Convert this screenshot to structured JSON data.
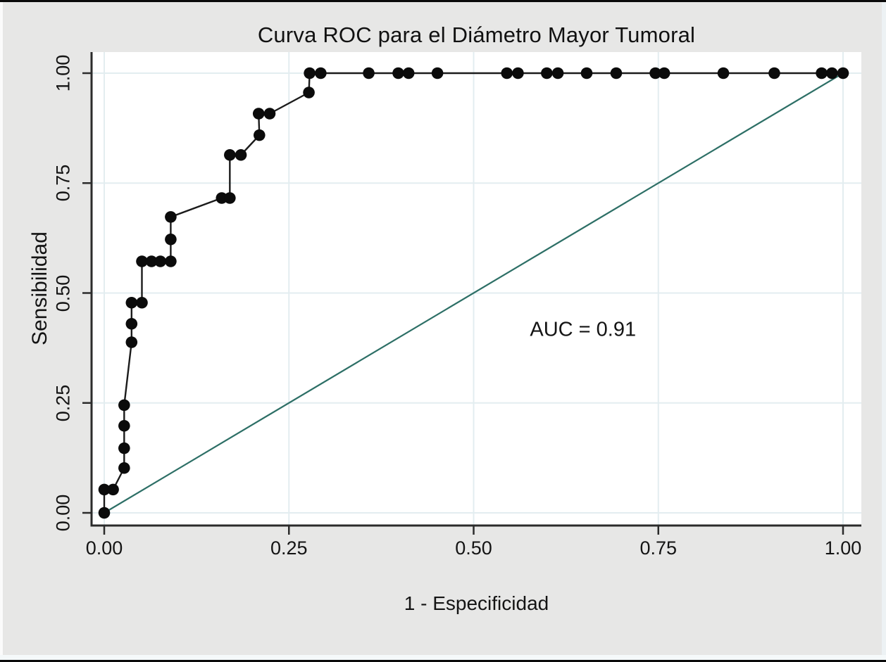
{
  "chart_data": {
    "type": "line",
    "title": "Curva ROC para el Diámetro Mayor Tumoral",
    "xlabel": "1 - Especificidad",
    "ylabel": "Sensibilidad",
    "xlim": [
      0,
      1
    ],
    "ylim": [
      0,
      1
    ],
    "grid": true,
    "legend": "none",
    "x_ticks": {
      "values": [
        0,
        0.25,
        0.5,
        0.75,
        1
      ],
      "labels": [
        "0.00",
        "0.25",
        "0.50",
        "0.75",
        "1.00"
      ]
    },
    "y_ticks": {
      "values": [
        0,
        0.25,
        0.5,
        0.75,
        1
      ],
      "labels": [
        "0.00",
        "0.25",
        "0.50",
        "0.75",
        "1.00"
      ]
    },
    "annotation": {
      "text": "AUC = 0.91",
      "x": 0.648,
      "y": 0.416
    },
    "series": [
      {
        "name": "roc-curve",
        "style": "line-with-markers",
        "color": "#1b1b1b",
        "marker_color": "#0b0b0b",
        "points": [
          [
            0.0,
            0.0
          ],
          [
            0.0,
            0.053
          ],
          [
            0.012,
            0.053
          ],
          [
            0.027,
            0.102
          ],
          [
            0.027,
            0.147
          ],
          [
            0.027,
            0.198
          ],
          [
            0.027,
            0.245
          ],
          [
            0.037,
            0.388
          ],
          [
            0.037,
            0.43
          ],
          [
            0.037,
            0.478
          ],
          [
            0.051,
            0.478
          ],
          [
            0.051,
            0.572
          ],
          [
            0.064,
            0.572
          ],
          [
            0.076,
            0.572
          ],
          [
            0.09,
            0.572
          ],
          [
            0.09,
            0.622
          ],
          [
            0.09,
            0.673
          ],
          [
            0.159,
            0.716
          ],
          [
            0.17,
            0.716
          ],
          [
            0.17,
            0.814
          ],
          [
            0.185,
            0.814
          ],
          [
            0.21,
            0.859
          ],
          [
            0.209,
            0.908
          ],
          [
            0.224,
            0.908
          ],
          [
            0.277,
            0.956
          ],
          [
            0.278,
            1.0
          ],
          [
            0.293,
            1.0
          ],
          [
            0.358,
            1.0
          ],
          [
            0.398,
            1.0
          ],
          [
            0.412,
            1.0
          ],
          [
            0.451,
            1.0
          ],
          [
            0.545,
            1.0
          ],
          [
            0.56,
            1.0
          ],
          [
            0.599,
            1.0
          ],
          [
            0.614,
            1.0
          ],
          [
            0.653,
            1.0
          ],
          [
            0.693,
            1.0
          ],
          [
            0.746,
            1.0
          ],
          [
            0.758,
            1.0
          ],
          [
            0.838,
            1.0
          ],
          [
            0.907,
            1.0
          ],
          [
            0.971,
            1.0
          ],
          [
            0.985,
            1.0
          ],
          [
            1.0,
            1.0
          ]
        ]
      },
      {
        "name": "reference-line",
        "style": "line",
        "color": "#2d6f66",
        "points": [
          [
            0,
            0
          ],
          [
            1,
            1
          ]
        ]
      }
    ]
  },
  "colors": {
    "figure_background": "#e7e7e6",
    "plot_background": "#ffffff",
    "gridline": "#e3edf0",
    "axis_line": "#2b2b2b",
    "text": "#141414",
    "outer_border": "#0a0a0a"
  }
}
